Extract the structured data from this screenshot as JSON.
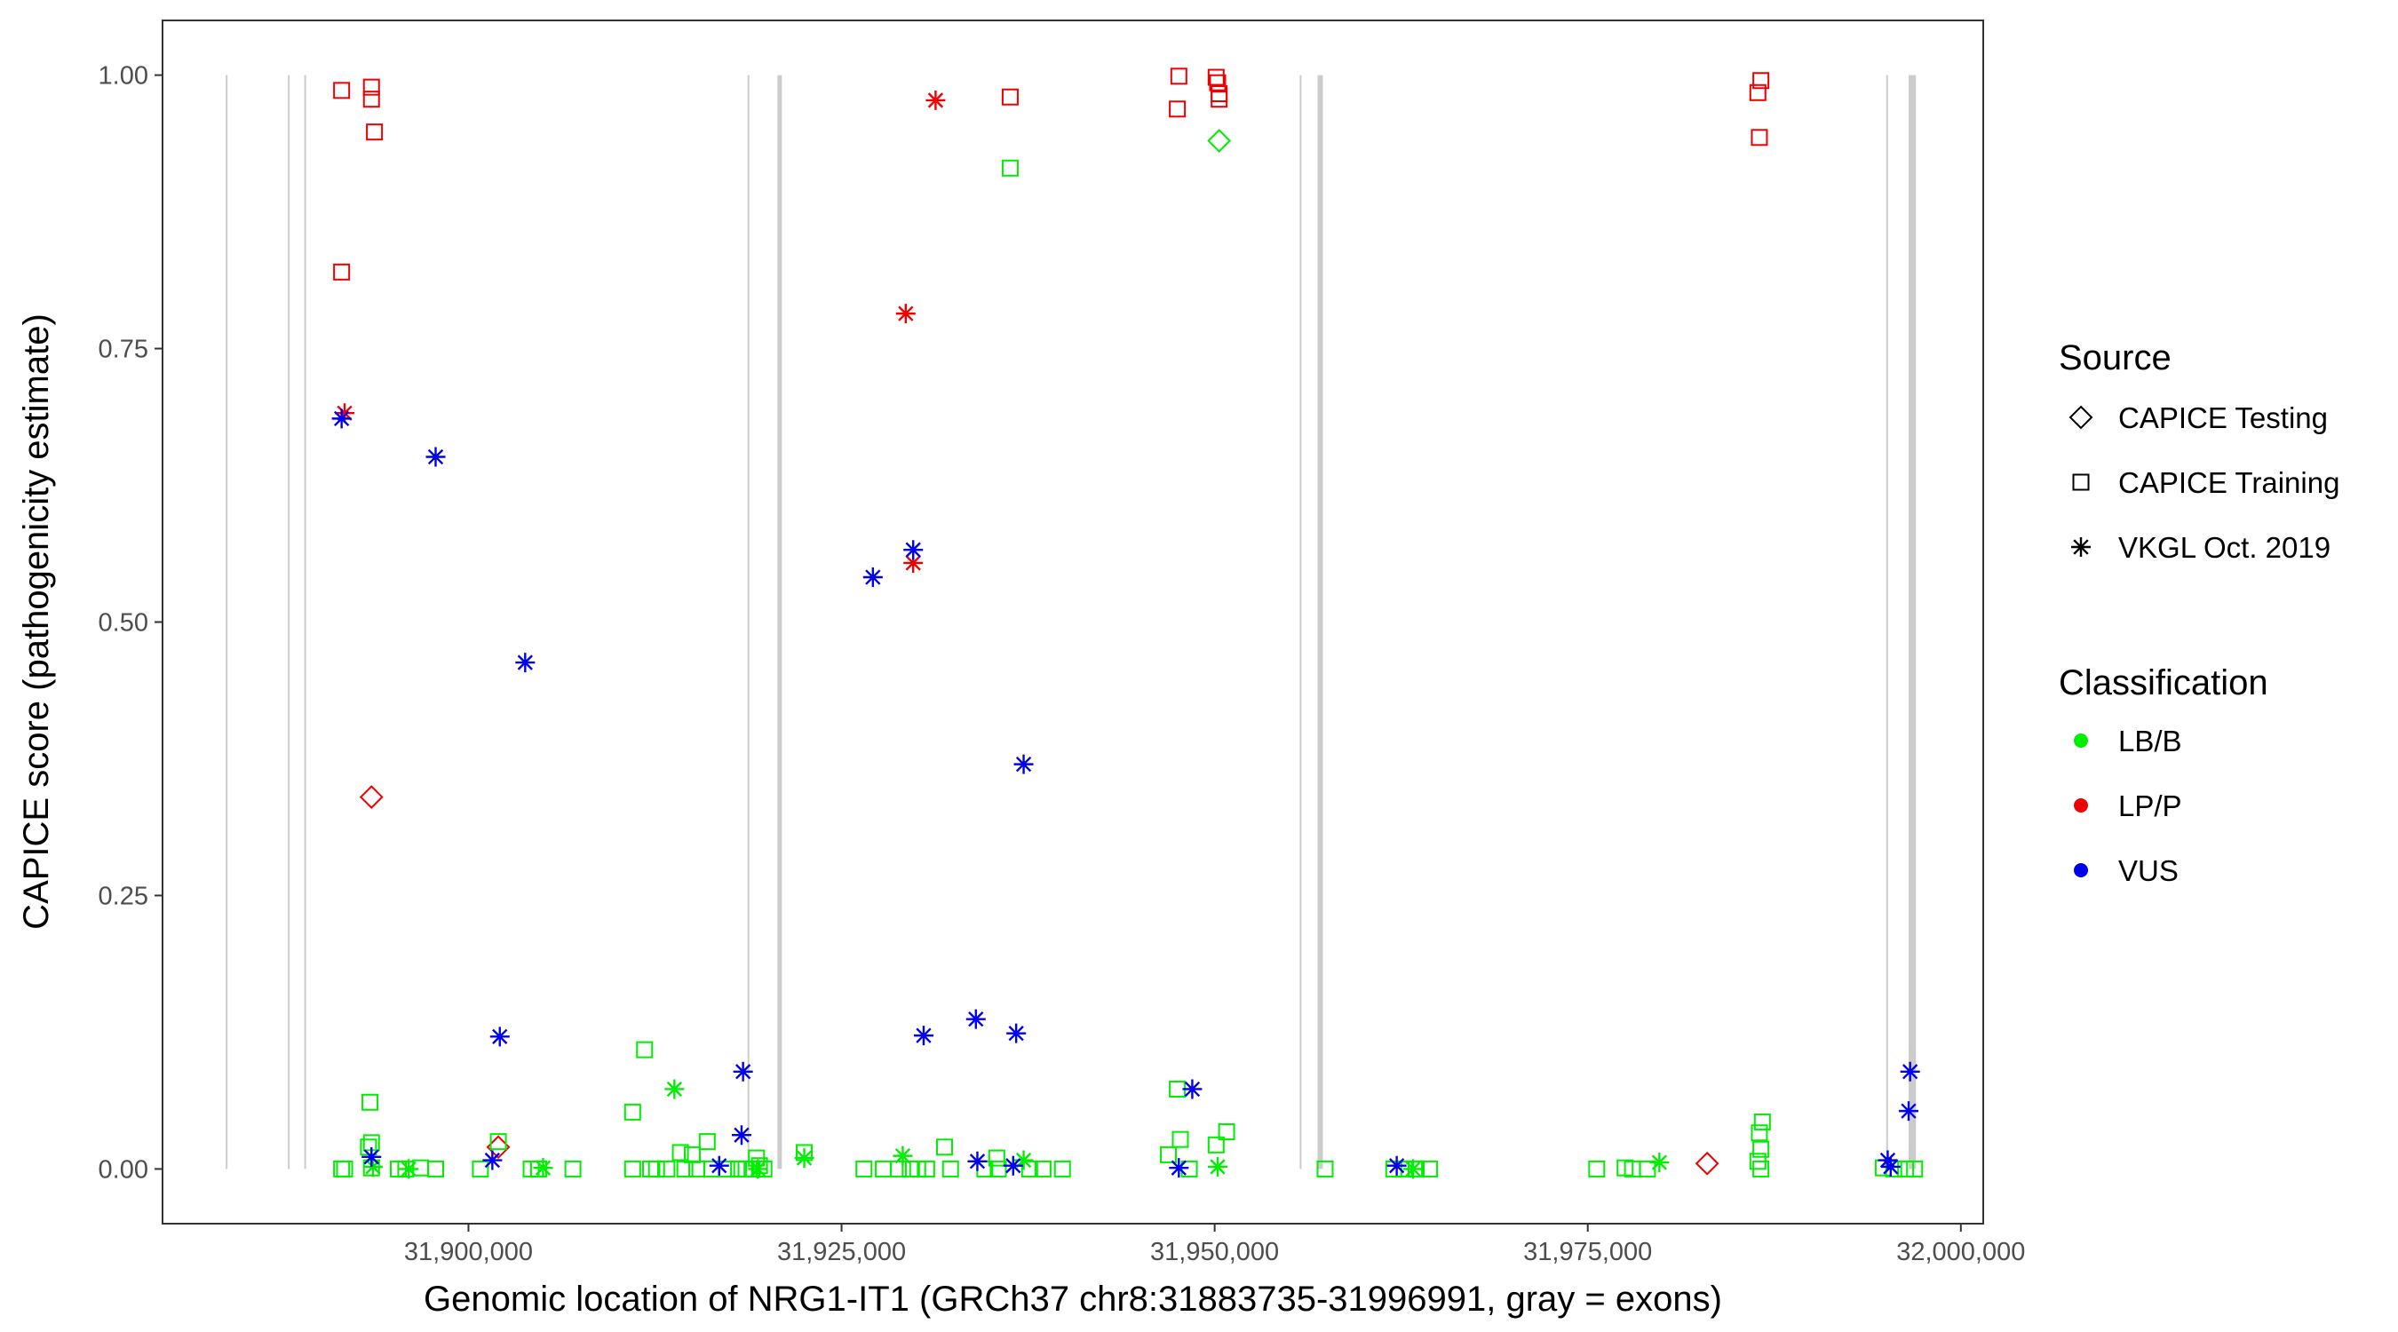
{
  "chart_data": {
    "type": "scatter",
    "xlabel": "Genomic location of NRG1-IT1 (GRCh37 chr8:31883735-31996991, gray = exons)",
    "ylabel": "CAPICE score (pathogenicity estimate)",
    "xlim": [
      31879500,
      32001500
    ],
    "ylim": [
      -0.05,
      1.05
    ],
    "x_ticks": [
      31900000,
      31925000,
      31950000,
      31975000,
      32000000
    ],
    "x_tick_labels": [
      "31,900,000",
      "31,925,000",
      "31,950,000",
      "31,975,000",
      "32,000,000"
    ],
    "y_ticks": [
      0,
      0.25,
      0.5,
      0.75,
      1.0
    ],
    "y_tick_labels": [
      "0.00",
      "0.25",
      "0.50",
      "0.75",
      "1.00"
    ],
    "grid": false,
    "legend_placement": "right",
    "exons": [
      [
        31883735,
        31883800
      ],
      [
        31887900,
        31887960
      ],
      [
        31889000,
        31889060
      ],
      [
        31918700,
        31918760
      ],
      [
        31920700,
        31921000
      ],
      [
        31955700,
        31955760
      ],
      [
        31956900,
        31957250
      ],
      [
        31995000,
        31995060
      ],
      [
        31996500,
        31996991
      ]
    ],
    "legend": {
      "source_title": "Source",
      "sources": [
        {
          "key": "testing",
          "label": "CAPICE Testing",
          "shape": "diamond"
        },
        {
          "key": "training",
          "label": "CAPICE Training",
          "shape": "square"
        },
        {
          "key": "vkgl",
          "label": "VKGL Oct. 2019",
          "shape": "asterisk"
        }
      ],
      "class_title": "Classification",
      "classes": [
        {
          "key": "LB/B",
          "label": "LB/B",
          "color": "#00ee00"
        },
        {
          "key": "LP/P",
          "label": "LP/P",
          "color": "#ee0000"
        },
        {
          "key": "VUS",
          "label": "VUS",
          "color": "#0000ee"
        }
      ]
    },
    "series": [
      {
        "source": "training",
        "classification": "LP/P",
        "points": [
          [
            31891500,
            0.986
          ],
          [
            31893500,
            0.989
          ],
          [
            31893500,
            0.978
          ],
          [
            31893700,
            0.948
          ],
          [
            31891500,
            0.82
          ],
          [
            31936300,
            0.98
          ],
          [
            31947600,
            0.999
          ],
          [
            31947500,
            0.969
          ],
          [
            31950100,
            0.998
          ],
          [
            31950200,
            0.993
          ],
          [
            31950300,
            0.983
          ],
          [
            31950300,
            0.978
          ],
          [
            31986600,
            0.995
          ],
          [
            31986400,
            0.984
          ],
          [
            31986500,
            0.943
          ]
        ]
      },
      {
        "source": "vkgl",
        "classification": "LP/P",
        "points": [
          [
            31891700,
            0.691
          ],
          [
            31931300,
            0.977
          ],
          [
            31929300,
            0.782
          ],
          [
            31929800,
            0.554
          ]
        ]
      },
      {
        "source": "testing",
        "classification": "LP/P",
        "points": [
          [
            31893500,
            0.34
          ],
          [
            31902000,
            0.02
          ],
          [
            31983000,
            0.005
          ]
        ]
      },
      {
        "source": "testing",
        "classification": "LB/B",
        "points": [
          [
            31950300,
            0.94
          ]
        ]
      },
      {
        "source": "training",
        "classification": "LB/B",
        "points": [
          [
            31936300,
            0.915
          ],
          [
            31911800,
            0.109
          ],
          [
            31893400,
            0.061
          ],
          [
            31911000,
            0.052
          ],
          [
            31893500,
            0.024
          ],
          [
            31893300,
            0.02
          ],
          [
            31902000,
            0.025
          ],
          [
            31919300,
            0.01
          ],
          [
            31919500,
            0.003
          ],
          [
            31915000,
            0.013
          ],
          [
            31916000,
            0.025
          ],
          [
            31914200,
            0.015
          ],
          [
            31922500,
            0.015
          ],
          [
            31931900,
            0.02
          ],
          [
            31935400,
            0.01
          ],
          [
            31947500,
            0.073
          ],
          [
            31947700,
            0.027
          ],
          [
            31946900,
            0.013
          ],
          [
            31950800,
            0.034
          ],
          [
            31950100,
            0.022
          ],
          [
            31986700,
            0.043
          ],
          [
            31986500,
            0.033
          ],
          [
            31986600,
            0.018
          ],
          [
            31986400,
            0.007
          ],
          [
            31891500,
            0.0
          ],
          [
            31891700,
            0.0
          ],
          [
            31893500,
            0.001
          ],
          [
            31895300,
            0.0
          ],
          [
            31895800,
            0.0
          ],
          [
            31896800,
            0.001
          ],
          [
            31897800,
            0.0
          ],
          [
            31900800,
            0.0
          ],
          [
            31904200,
            0.0
          ],
          [
            31904700,
            0.0
          ],
          [
            31907000,
            0.0
          ],
          [
            31911000,
            0.0
          ],
          [
            31912200,
            0.0
          ],
          [
            31912600,
            0.0
          ],
          [
            31913300,
            0.0
          ],
          [
            31914500,
            0.0
          ],
          [
            31915300,
            0.0
          ],
          [
            31916300,
            0.0
          ],
          [
            31917300,
            0.0
          ],
          [
            31918100,
            0.0
          ],
          [
            31918600,
            0.0
          ],
          [
            31919000,
            0.0
          ],
          [
            31919800,
            0.0
          ],
          [
            31926500,
            0.0
          ],
          [
            31927800,
            0.0
          ],
          [
            31928800,
            0.0
          ],
          [
            31929600,
            0.0
          ],
          [
            31930100,
            0.0
          ],
          [
            31930700,
            0.0
          ],
          [
            31932300,
            0.0
          ],
          [
            31934600,
            0.0
          ],
          [
            31935500,
            0.0
          ],
          [
            31937600,
            0.0
          ],
          [
            31938500,
            0.0
          ],
          [
            31939800,
            0.0
          ],
          [
            31948300,
            0.0
          ],
          [
            31957400,
            0.0
          ],
          [
            31962000,
            0.0
          ],
          [
            31962700,
            0.0
          ],
          [
            31963500,
            0.0
          ],
          [
            31964400,
            0.0
          ],
          [
            31975600,
            0.0
          ],
          [
            31977500,
            0.001
          ],
          [
            31978000,
            0.0
          ],
          [
            31979000,
            0.0
          ],
          [
            31986600,
            0.0
          ],
          [
            31994800,
            0.001
          ],
          [
            31995500,
            0.0
          ],
          [
            31996300,
            0.0
          ],
          [
            31996900,
            0.0
          ]
        ]
      },
      {
        "source": "vkgl",
        "classification": "LB/B",
        "points": [
          [
            31913800,
            0.073
          ],
          [
            31893600,
            0.002
          ],
          [
            31905000,
            0.001
          ],
          [
            31922500,
            0.01
          ],
          [
            31929100,
            0.012
          ],
          [
            31937200,
            0.008
          ],
          [
            31950200,
            0.002
          ],
          [
            31963300,
            0.0
          ],
          [
            31979800,
            0.006
          ],
          [
            31919400,
            0.0
          ],
          [
            31896000,
            0.0
          ]
        ]
      },
      {
        "source": "vkgl",
        "classification": "VUS",
        "points": [
          [
            31891500,
            0.686
          ],
          [
            31897800,
            0.651
          ],
          [
            31903800,
            0.463
          ],
          [
            31927100,
            0.541
          ],
          [
            31929800,
            0.566
          ],
          [
            31937200,
            0.37
          ],
          [
            31948500,
            0.073
          ],
          [
            31902100,
            0.121
          ],
          [
            31918400,
            0.089
          ],
          [
            31918300,
            0.031
          ],
          [
            31930500,
            0.122
          ],
          [
            31934000,
            0.137
          ],
          [
            31936700,
            0.124
          ],
          [
            31996600,
            0.089
          ],
          [
            31996500,
            0.053
          ],
          [
            31893500,
            0.011
          ],
          [
            31901600,
            0.008
          ],
          [
            31916800,
            0.003
          ],
          [
            31934100,
            0.007
          ],
          [
            31936500,
            0.003
          ],
          [
            31947600,
            0.001
          ],
          [
            31962200,
            0.003
          ],
          [
            31995100,
            0.008
          ],
          [
            31995300,
            0.002
          ]
        ]
      }
    ]
  }
}
